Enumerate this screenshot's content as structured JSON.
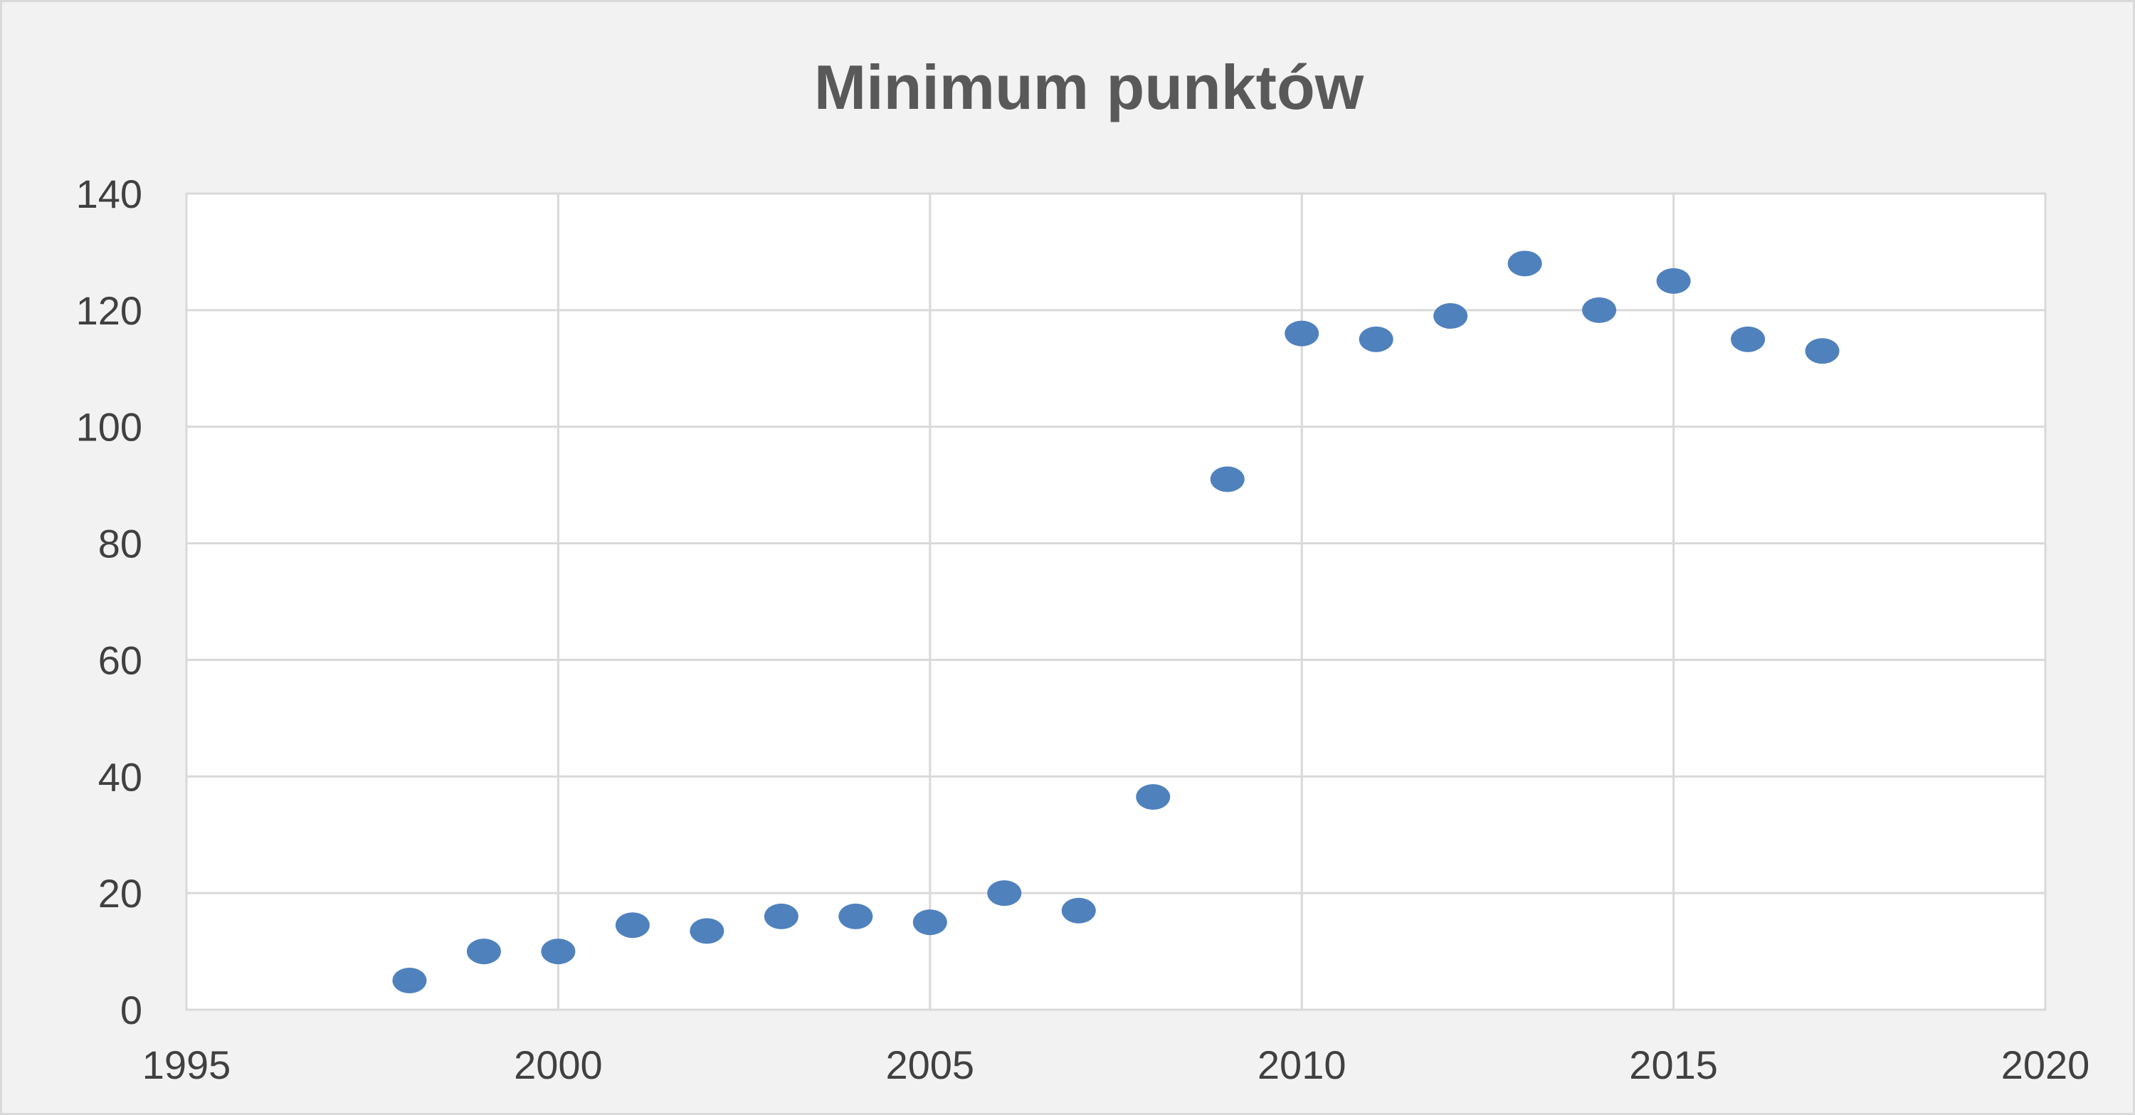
{
  "chart_data": {
    "type": "scatter",
    "title": "Minimum punktów",
    "xlabel": "",
    "ylabel": "",
    "xlim": [
      1995,
      2020
    ],
    "ylim": [
      0,
      140
    ],
    "x_ticks": [
      1995,
      2000,
      2005,
      2010,
      2015,
      2020
    ],
    "y_ticks": [
      0,
      20,
      40,
      60,
      80,
      100,
      120,
      140
    ],
    "grid": true,
    "legend": "none",
    "marker_color": "#4f81bd",
    "points": [
      {
        "x": 1998,
        "y": 5
      },
      {
        "x": 1999,
        "y": 10
      },
      {
        "x": 2000,
        "y": 10
      },
      {
        "x": 2001,
        "y": 14.5
      },
      {
        "x": 2002,
        "y": 13.5
      },
      {
        "x": 2003,
        "y": 16
      },
      {
        "x": 2004,
        "y": 16
      },
      {
        "x": 2005,
        "y": 15
      },
      {
        "x": 2006,
        "y": 20
      },
      {
        "x": 2007,
        "y": 17
      },
      {
        "x": 2008,
        "y": 36.5
      },
      {
        "x": 2009,
        "y": 91
      },
      {
        "x": 2010,
        "y": 116
      },
      {
        "x": 2011,
        "y": 115
      },
      {
        "x": 2012,
        "y": 119
      },
      {
        "x": 2013,
        "y": 128
      },
      {
        "x": 2014,
        "y": 120
      },
      {
        "x": 2015,
        "y": 125
      },
      {
        "x": 2016,
        "y": 115
      },
      {
        "x": 2017,
        "y": 113
      }
    ]
  }
}
